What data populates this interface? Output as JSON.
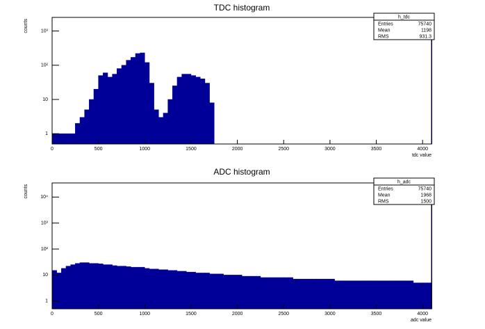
{
  "chart_data": [
    {
      "type": "histogram",
      "title": "TDC histogram",
      "xlabel": "tdc value",
      "ylabel": "counts",
      "color": "#000099",
      "log_y": true,
      "bins": [
        0,
        50,
        100,
        150,
        200,
        250,
        300,
        350,
        400,
        450,
        500,
        550,
        600,
        650,
        700,
        750,
        800,
        850,
        900,
        950,
        1000,
        1050,
        1100,
        1150,
        1200,
        1250,
        1300,
        1350,
        1400,
        1450,
        1500,
        1550,
        1600,
        1650,
        1700,
        1750,
        1800,
        1850,
        1900,
        1950,
        2000,
        2050,
        2100,
        2150,
        2200,
        2250,
        2300,
        2350,
        2400,
        2450,
        2500,
        2550,
        2600,
        2650,
        2700,
        2750,
        2800,
        2850,
        2900,
        2950,
        3000,
        3050,
        3100,
        3150,
        3200,
        3250,
        3300,
        3350,
        3400,
        3450,
        3500,
        3550,
        3600,
        3650,
        3700,
        3750,
        3800,
        3850,
        3900,
        3950,
        4000,
        4050,
        4094,
        4096
      ],
      "counts": [
        1,
        1,
        1,
        1,
        1,
        2,
        3,
        5,
        10,
        20,
        50,
        60,
        45,
        55,
        80,
        100,
        140,
        170,
        220,
        230,
        120,
        30,
        5,
        3,
        4,
        10,
        25,
        45,
        55,
        55,
        50,
        45,
        40,
        30,
        8,
        0,
        0,
        0,
        0,
        0,
        0,
        0,
        0,
        0,
        0,
        0,
        0,
        0,
        0,
        0,
        0,
        0,
        0,
        0,
        0,
        0,
        0,
        0,
        0,
        0,
        0,
        0,
        0,
        0,
        0,
        0,
        0,
        0,
        0,
        0,
        0,
        0,
        0,
        0,
        0,
        0,
        0,
        0,
        0,
        0,
        0,
        0,
        1500
      ],
      "xlim": [
        0,
        4096
      ],
      "xticks": [
        0,
        500,
        1000,
        1500,
        2000,
        2500,
        3000,
        3500,
        4000
      ],
      "ylim": [
        0.5,
        2500
      ],
      "yticks": [
        1,
        10,
        {
          "value": 100,
          "label": "10²"
        },
        {
          "value": 1000,
          "label": "10³"
        }
      ],
      "stats": {
        "title": "h_tdc",
        "rows": [
          {
            "label": "Entries",
            "value": 75740
          },
          {
            "label": "Mean",
            "value": 1198
          },
          {
            "label": "RMS",
            "value": 931.3
          }
        ]
      }
    },
    {
      "type": "histogram",
      "title": "ADC histogram",
      "xlabel": "adc value",
      "ylabel": "counts",
      "color": "#000099",
      "log_y": true,
      "bins": [
        0,
        50,
        100,
        150,
        200,
        250,
        300,
        350,
        400,
        450,
        500,
        550,
        600,
        650,
        700,
        750,
        800,
        850,
        900,
        950,
        1000,
        1050,
        1100,
        1150,
        1200,
        1250,
        1300,
        1350,
        1400,
        1450,
        1500,
        1550,
        1600,
        1650,
        1700,
        1750,
        1800,
        1850,
        1900,
        1950,
        2000,
        2050,
        2100,
        2150,
        2200,
        2250,
        2300,
        2350,
        2400,
        2450,
        2500,
        2550,
        2600,
        2650,
        2700,
        2750,
        2800,
        2850,
        2900,
        2950,
        3000,
        3050,
        3100,
        3150,
        3200,
        3250,
        3300,
        3350,
        3400,
        3450,
        3500,
        3550,
        3600,
        3650,
        3700,
        3750,
        3800,
        3850,
        3900,
        3950,
        4000,
        4050,
        4094,
        4096
      ],
      "counts": [
        15,
        12,
        18,
        22,
        25,
        28,
        30,
        30,
        28,
        28,
        27,
        25,
        25,
        23,
        22,
        22,
        21,
        20,
        20,
        20,
        18,
        17,
        17,
        16,
        16,
        15,
        15,
        14,
        14,
        13,
        13,
        12,
        12,
        12,
        11,
        11,
        11,
        10,
        10,
        10,
        10,
        9,
        9,
        9,
        9,
        8,
        8,
        8,
        8,
        8,
        8,
        8,
        7,
        7,
        7,
        7,
        7,
        7,
        7,
        7,
        7,
        6,
        6,
        6,
        6,
        6,
        6,
        6,
        6,
        6,
        6,
        6,
        6,
        6,
        6,
        6,
        6,
        6,
        5,
        5,
        5,
        5,
        20000
      ],
      "xlim": [
        0,
        4096
      ],
      "xticks": [
        0,
        500,
        1000,
        1500,
        2000,
        2500,
        3000,
        3500,
        4000
      ],
      "ylim": [
        0.5,
        35000
      ],
      "yticks": [
        1,
        10,
        {
          "value": 100,
          "label": "10²"
        },
        {
          "value": 1000,
          "label": "10³"
        },
        {
          "value": 10000,
          "label": "10⁴"
        }
      ],
      "stats": {
        "title": "h_adc",
        "rows": [
          {
            "label": "Entries",
            "value": 75740
          },
          {
            "label": "Mean",
            "value": 1968
          },
          {
            "label": "RMS",
            "value": 1500
          }
        ]
      }
    }
  ]
}
